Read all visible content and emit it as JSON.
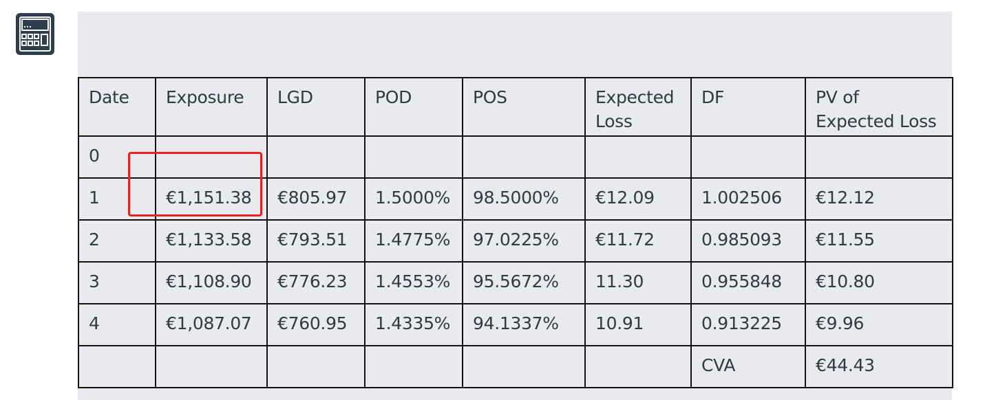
{
  "table": {
    "headers": [
      "Date",
      "Exposure",
      "LGD",
      "POD",
      "POS",
      "Expected Loss",
      "DF",
      "PV of Expected Loss"
    ],
    "rows": [
      [
        "0",
        "",
        "",
        "",
        "",
        "",
        "",
        ""
      ],
      [
        "1",
        "€1,151.38",
        "€805.97",
        "1.5000%",
        "98.5000%",
        "€12.09",
        "1.002506",
        "€12.12"
      ],
      [
        "2",
        "€1,133.58",
        "€793.51",
        "1.4775%",
        "97.0225%",
        "€11.72",
        "0.985093",
        "€11.55"
      ],
      [
        "3",
        "€1,108.90",
        "€776.23",
        "1.4553%",
        "95.5672%",
        "11.30",
        "0.955848",
        "€10.80"
      ],
      [
        "4",
        "€1,087.07",
        "€760.95",
        "1.4335%",
        "94.1337%",
        "10.91",
        "0.913225",
        "€9.96"
      ],
      [
        "",
        "",
        "",
        "",
        "",
        "",
        "CVA",
        "€44.43"
      ]
    ]
  },
  "icon": "calculator-icon",
  "highlight_color": "#e8231f"
}
